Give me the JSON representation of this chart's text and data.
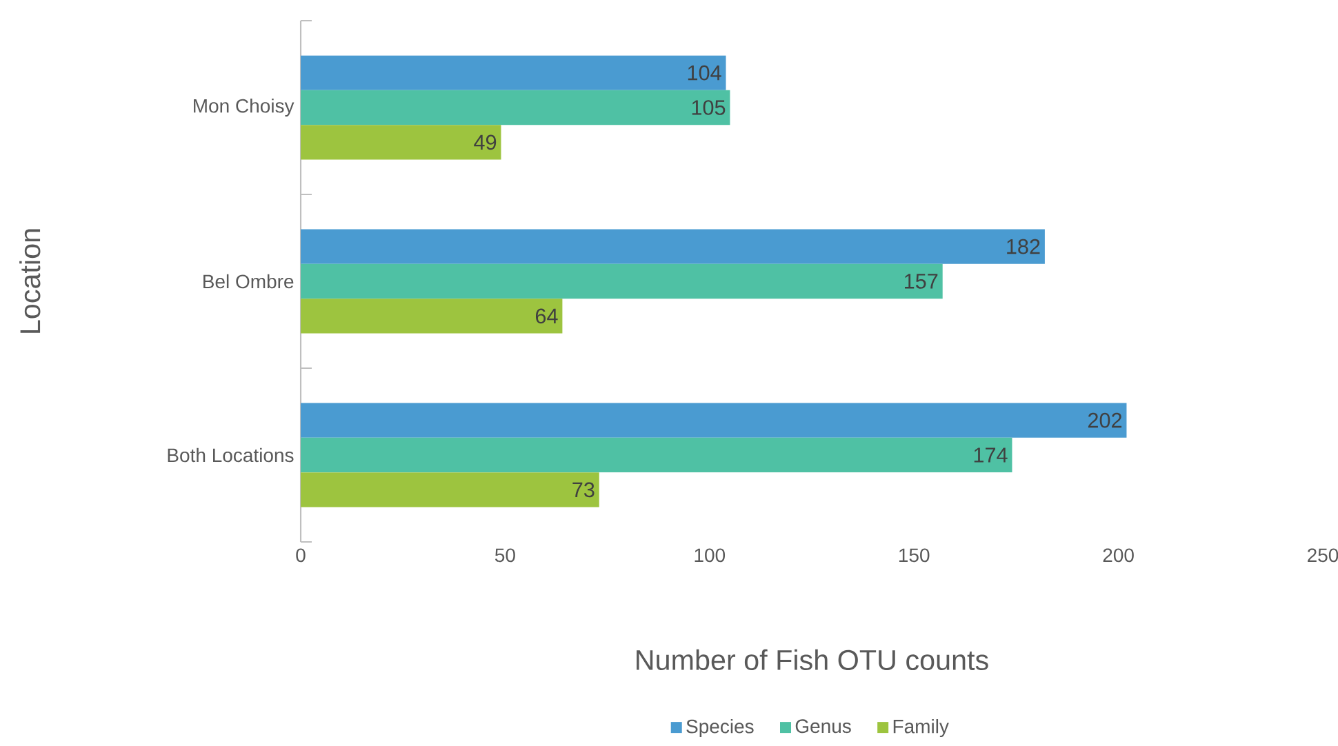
{
  "chart_data": {
    "type": "bar",
    "orientation": "horizontal",
    "xlabel": "Number of Fish OTU counts",
    "ylabel": "Location",
    "categories": [
      "Mon Choisy",
      "Bel Ombre",
      "Both Locations"
    ],
    "series": [
      {
        "name": "Species",
        "color": "#4a9bd1",
        "values": [
          104,
          182,
          202
        ]
      },
      {
        "name": "Genus",
        "color": "#4fc1a4",
        "values": [
          105,
          157,
          174
        ]
      },
      {
        "name": "Family",
        "color": "#9dc43f",
        "values": [
          49,
          64,
          73
        ]
      }
    ],
    "xlim": [
      0,
      250
    ],
    "xticks": [
      0,
      50,
      100,
      150,
      200,
      250
    ],
    "data_labels": true,
    "legend": "bottom",
    "grid": false
  }
}
